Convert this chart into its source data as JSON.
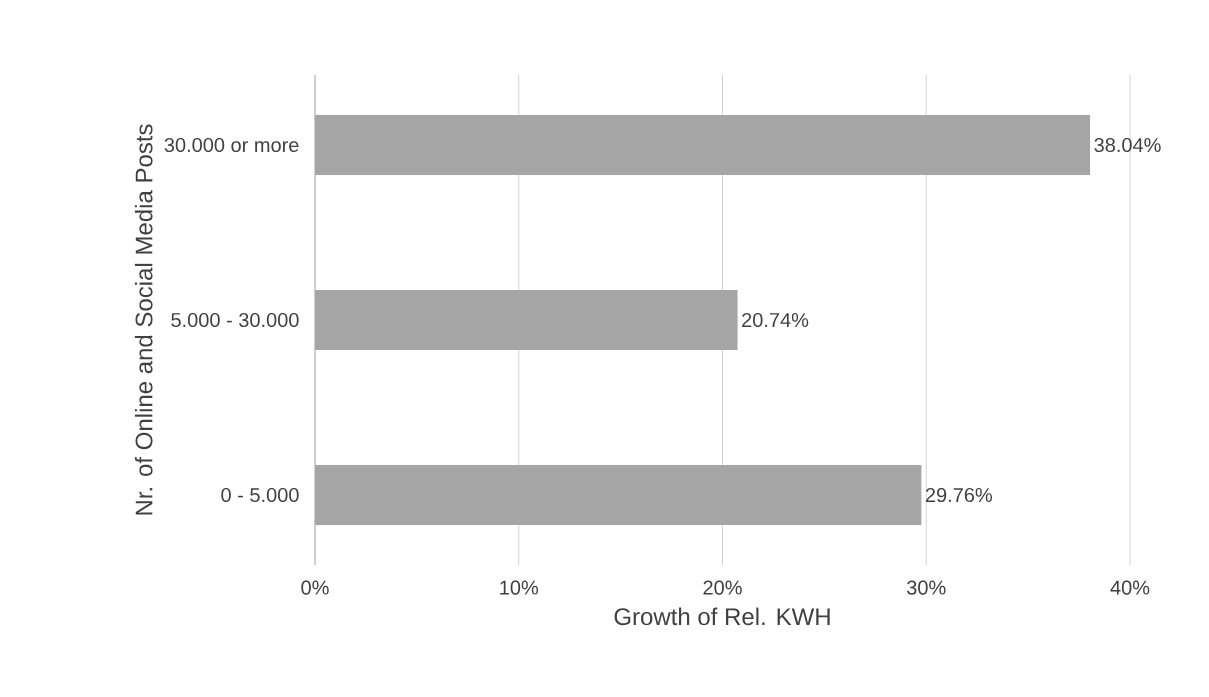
{
  "chart_data": {
    "type": "bar",
    "orientation": "horizontal",
    "xlabel": "Growth of Rel. KWH",
    "ylabel": "Nr. of Online and Social Media Posts",
    "categories": [
      "30.000 or more",
      "5.000 - 30.000",
      "0 - 5.000"
    ],
    "values": [
      38.04,
      20.74,
      29.76
    ],
    "value_labels": [
      "38.04%",
      "20.74%",
      "29.76%"
    ],
    "color": "#a5a5a5",
    "xlim": [
      0,
      40
    ],
    "xticks": [
      {
        "value": 0,
        "label": "0%"
      },
      {
        "value": 10,
        "label": "10%"
      },
      {
        "value": 20,
        "label": "20%"
      },
      {
        "value": 30,
        "label": "30%"
      },
      {
        "value": 40,
        "label": "40%"
      }
    ],
    "grid": "x"
  }
}
